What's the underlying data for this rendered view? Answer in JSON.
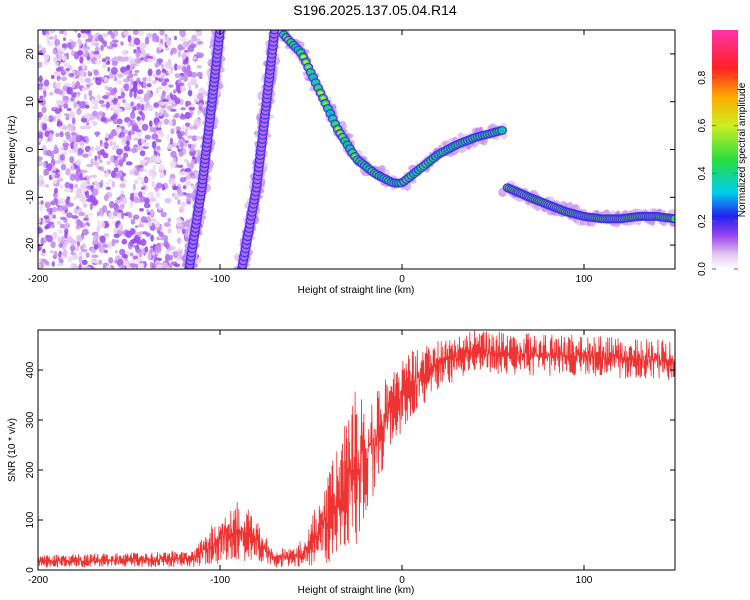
{
  "title": "S196.2025.137.05.04.R14",
  "chart_data": [
    {
      "type": "heatmap",
      "xlabel": "Height of straight line (km)",
      "ylabel": "Frequency (Hz)",
      "xlim": [
        -200,
        150
      ],
      "ylim": [
        -25,
        25
      ],
      "x_ticks": [
        -200,
        -100,
        0,
        100
      ],
      "y_ticks": [
        -20,
        -10,
        0,
        10,
        20
      ],
      "colorbar": {
        "label": "Normalized spectral amplitude",
        "range": [
          0.0,
          1.0
        ],
        "ticks": [
          0.0,
          0.2,
          0.4,
          0.6,
          0.8
        ],
        "tick_labels": [
          "0.0",
          "0.2",
          "0.4",
          "0.6",
          "0.8"
        ]
      },
      "features": [
        {
          "kind": "noise",
          "x_range": [
            -200,
            -110
          ],
          "freq_range": [
            -25,
            25
          ],
          "amplitude": 0.1
        },
        {
          "kind": "track",
          "amplitude": 0.15,
          "points": [
            [
              -117,
              -25
            ],
            [
              -110,
              -8
            ],
            [
              -105,
              8
            ],
            [
              -100,
              25
            ]
          ]
        },
        {
          "kind": "track",
          "amplitude": 0.15,
          "points": [
            [
              -88,
              -25
            ],
            [
              -80,
              -8
            ],
            [
              -75,
              8
            ],
            [
              -70,
              25
            ]
          ]
        },
        {
          "kind": "track",
          "amplitude": 0.55,
          "points": [
            [
              -65,
              24
            ],
            [
              -55,
              20
            ],
            [
              -45,
              12
            ],
            [
              -35,
              4
            ],
            [
              -25,
              -2
            ],
            [
              -15,
              -5
            ],
            [
              -5,
              -7
            ],
            [
              0,
              -7
            ],
            [
              10,
              -4
            ],
            [
              20,
              -1
            ],
            [
              30,
              1
            ],
            [
              40,
              2.5
            ],
            [
              50,
              3.5
            ],
            [
              55,
              4
            ]
          ]
        },
        {
          "kind": "track",
          "amplitude": 0.7,
          "points": [
            [
              58,
              -8
            ],
            [
              70,
              -10
            ],
            [
              80,
              -11.5
            ],
            [
              90,
              -13
            ],
            [
              100,
              -14
            ],
            [
              110,
              -14.5
            ],
            [
              120,
              -14.5
            ],
            [
              130,
              -14
            ],
            [
              140,
              -14
            ],
            [
              150,
              -14.5
            ]
          ]
        }
      ]
    },
    {
      "type": "line",
      "xlabel": "Height of straight line (km)",
      "ylabel": "SNR (10 * v/v)",
      "xlim": [
        -200,
        150
      ],
      "ylim": [
        0,
        480
      ],
      "x_ticks": [
        -200,
        -100,
        0,
        100
      ],
      "y_ticks": [
        0,
        100,
        200,
        300,
        400
      ],
      "color": "#ee3333",
      "envelope": [
        {
          "x": -200,
          "lo": 5,
          "hi": 30
        },
        {
          "x": -150,
          "lo": 5,
          "hi": 35
        },
        {
          "x": -115,
          "lo": 5,
          "hi": 40
        },
        {
          "x": -105,
          "lo": 10,
          "hi": 90
        },
        {
          "x": -90,
          "lo": 20,
          "hi": 150
        },
        {
          "x": -80,
          "lo": 15,
          "hi": 100
        },
        {
          "x": -70,
          "lo": 5,
          "hi": 40
        },
        {
          "x": -55,
          "lo": 5,
          "hi": 60
        },
        {
          "x": -45,
          "lo": 10,
          "hi": 150
        },
        {
          "x": -35,
          "lo": 20,
          "hi": 250
        },
        {
          "x": -25,
          "lo": 50,
          "hi": 370
        },
        {
          "x": -15,
          "lo": 150,
          "hi": 360
        },
        {
          "x": -5,
          "lo": 250,
          "hi": 410
        },
        {
          "x": 5,
          "lo": 300,
          "hi": 440
        },
        {
          "x": 15,
          "lo": 340,
          "hi": 450
        },
        {
          "x": 25,
          "lo": 370,
          "hi": 470
        },
        {
          "x": 40,
          "lo": 395,
          "hi": 480
        },
        {
          "x": 60,
          "lo": 390,
          "hi": 475
        },
        {
          "x": 100,
          "lo": 385,
          "hi": 470
        },
        {
          "x": 150,
          "lo": 380,
          "hi": 460
        }
      ]
    }
  ]
}
